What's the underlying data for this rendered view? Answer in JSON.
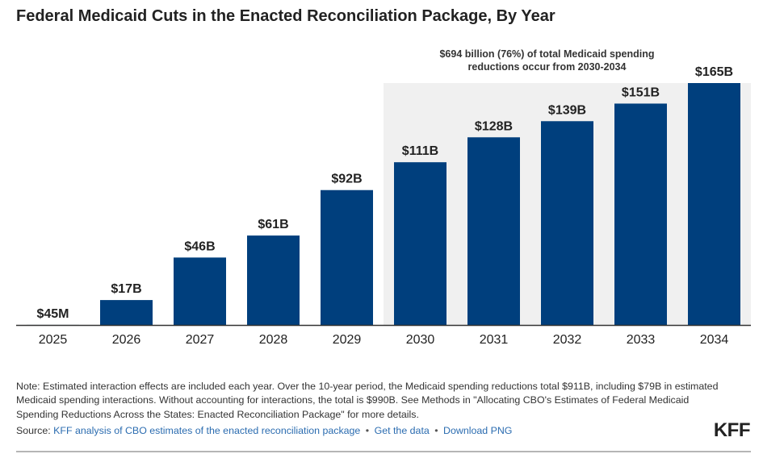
{
  "title": "Federal Medicaid Cuts in the Enacted Reconciliation Package, By Year",
  "chart_data": {
    "type": "bar",
    "categories": [
      "2025",
      "2026",
      "2027",
      "2028",
      "2029",
      "2030",
      "2031",
      "2032",
      "2033",
      "2034"
    ],
    "values": [
      0.045,
      17,
      46,
      61,
      92,
      111,
      128,
      139,
      151,
      165
    ],
    "value_labels": [
      "$45M",
      "$17B",
      "$46B",
      "$61B",
      "$92B",
      "$111B",
      "$128B",
      "$139B",
      "$151B",
      "$165B"
    ],
    "ylim": [
      0,
      165
    ],
    "xlabel": "",
    "ylabel": "",
    "highlight_range": [
      "2030",
      "2034"
    ],
    "annotation": {
      "line1": "$694 billion (76%) of total Medicaid spending",
      "line2": "reductions occur from 2030-2034"
    }
  },
  "note": "Note: Estimated interaction effects are included each year. Over the 10-year period, the Medicaid spending reductions total $911B, including $79B in estimated Medicaid spending interactions. Without accounting for interactions, the total is $990B. See Methods in \"Allocating CBO's Estimates of Federal Medicaid Spending Reductions Across the States: Enacted Reconciliation Package\" for more details.",
  "source": {
    "prefix": "Source:",
    "link_text": "KFF analysis of CBO estimates of the enacted reconciliation package",
    "separator": "•",
    "get_data": "Get the data",
    "download": "Download PNG"
  },
  "logo": "KFF",
  "colors": {
    "bar": "#003f7d",
    "highlight": "#f0f0f0",
    "axis": "#333333",
    "text": "#222222"
  }
}
